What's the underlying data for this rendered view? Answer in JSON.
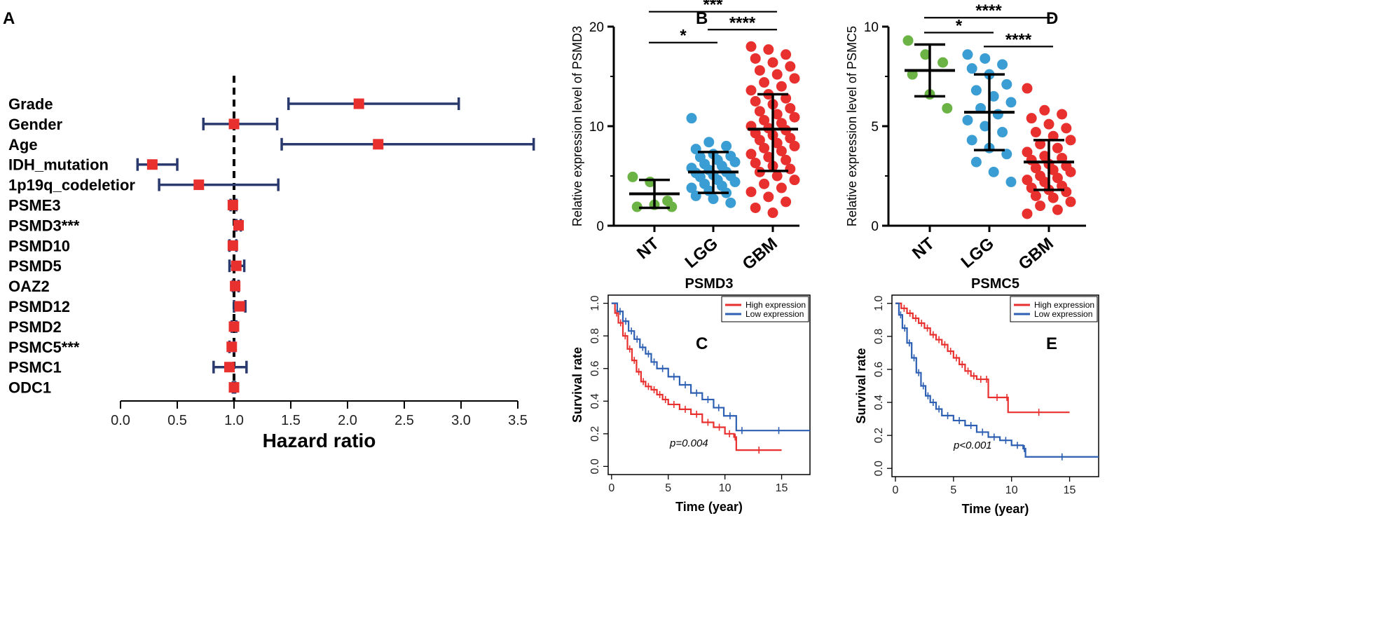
{
  "colors": {
    "red": "#e8302f",
    "blue": "#2d5fb2",
    "green": "#6ab344",
    "cyan": "#3a9dd3",
    "navy": "#2b3a6e",
    "forest_red": "#e8302f",
    "black": "#000000"
  },
  "panel_letters": {
    "A": "A",
    "B": "B",
    "C": "C",
    "D": "D",
    "E": "E"
  },
  "chart_data": [
    {
      "id": "A",
      "type": "forest",
      "xlabel": "Hazard ratio",
      "xlim": [
        0,
        3.5
      ],
      "xticks": [
        "0.0",
        "0.5",
        "1.0",
        "1.5",
        "2.0",
        "2.5",
        "3.0",
        "3.5"
      ],
      "reference_line": 1.0,
      "rows": [
        {
          "label": "Grade",
          "hr": 2.1,
          "lo": 1.48,
          "hi": 2.98
        },
        {
          "label": "Gender",
          "hr": 1.0,
          "lo": 0.73,
          "hi": 1.38
        },
        {
          "label": "Age",
          "hr": 2.27,
          "lo": 1.42,
          "hi": 3.64
        },
        {
          "label": "IDH_mutation",
          "hr": 0.28,
          "lo": 0.15,
          "hi": 0.5
        },
        {
          "label": "1p19q_codeletior",
          "hr": 0.69,
          "lo": 0.34,
          "hi": 1.39
        },
        {
          "label": "PSME3",
          "hr": 0.99,
          "lo": 0.97,
          "hi": 1.02
        },
        {
          "label": "PSMD3***",
          "hr": 1.04,
          "lo": 1.02,
          "hi": 1.06
        },
        {
          "label": "PSMD10",
          "hr": 0.99,
          "lo": 0.96,
          "hi": 1.02
        },
        {
          "label": "PSMD5",
          "hr": 1.02,
          "lo": 0.96,
          "hi": 1.09
        },
        {
          "label": "OAZ2",
          "hr": 1.01,
          "lo": 0.99,
          "hi": 1.04
        },
        {
          "label": "PSMD12",
          "hr": 1.05,
          "lo": 1.0,
          "hi": 1.1
        },
        {
          "label": "PSMD2",
          "hr": 1.0,
          "lo": 0.98,
          "hi": 1.02
        },
        {
          "label": "PSMC5***",
          "hr": 0.98,
          "lo": 0.96,
          "hi": 1.0
        },
        {
          "label": "PSMC1",
          "hr": 0.96,
          "lo": 0.82,
          "hi": 1.11
        },
        {
          "label": "ODC1",
          "hr": 1.0,
          "lo": 0.99,
          "hi": 1.01
        }
      ]
    },
    {
      "id": "B",
      "type": "scatter",
      "ylabel": "Relative expression level of  PSMD3",
      "ylim": [
        0,
        20
      ],
      "yticks": [
        "0",
        "10",
        "20"
      ],
      "categories": [
        "NT",
        "LGG",
        "GBM"
      ],
      "summary": [
        {
          "mean": 3.2,
          "sd_lo": 1.8,
          "sd_hi": 4.6
        },
        {
          "mean": 5.4,
          "sd_lo": 3.3,
          "sd_hi": 7.4
        },
        {
          "mean": 9.7,
          "sd_lo": 5.5,
          "sd_hi": 13.2
        }
      ],
      "points": [
        [
          4.9,
          4.4,
          2.5,
          1.9,
          2.1,
          1.9
        ],
        [
          10.8,
          8.4,
          8.0,
          7.7,
          7.2,
          7.0,
          6.9,
          6.6,
          6.4,
          6.2,
          6.0,
          5.8,
          5.6,
          5.4,
          5.3,
          5.1,
          5.0,
          4.9,
          4.6,
          4.4,
          4.2,
          4.0,
          3.8,
          3.5,
          3.3,
          3.0,
          2.7,
          2.3
        ],
        [
          18.0,
          17.7,
          17.2,
          16.8,
          16.4,
          16.0,
          15.6,
          15.2,
          14.8,
          14.4,
          14.0,
          13.6,
          13.2,
          12.8,
          12.5,
          12.2,
          11.8,
          11.5,
          11.2,
          10.9,
          10.6,
          10.3,
          10.0,
          9.8,
          9.6,
          9.3,
          9.1,
          8.8,
          8.6,
          8.3,
          8.0,
          7.8,
          7.5,
          7.2,
          6.9,
          6.6,
          6.3,
          6.0,
          5.7,
          5.4,
          5.0,
          4.6,
          4.2,
          3.8,
          3.4,
          2.9,
          2.4,
          1.8,
          1.3
        ]
      ],
      "colors": [
        "#6ab344",
        "#3a9dd3",
        "#e8302f"
      ],
      "significance": [
        {
          "label": "***",
          "from": 0,
          "to": 2,
          "level": 21.5
        },
        {
          "label": "*",
          "from": 0,
          "to": 1,
          "level": 18.4
        },
        {
          "label": "****",
          "from": 1,
          "to": 2,
          "level": 19.7
        }
      ]
    },
    {
      "id": "D",
      "type": "scatter",
      "ylabel": "Relative expression level of  PSMC5",
      "ylim": [
        0,
        10
      ],
      "yticks": [
        "0",
        "5",
        "10"
      ],
      "categories": [
        "NT",
        "LGG",
        "GBM"
      ],
      "summary": [
        {
          "mean": 7.8,
          "sd_lo": 6.5,
          "sd_hi": 9.1
        },
        {
          "mean": 5.7,
          "sd_lo": 3.8,
          "sd_hi": 7.6
        },
        {
          "mean": 3.2,
          "sd_lo": 1.8,
          "sd_hi": 4.3
        }
      ],
      "points": [
        [
          9.3,
          8.6,
          8.2,
          7.6,
          6.6,
          5.9
        ],
        [
          8.6,
          8.4,
          8.1,
          7.9,
          7.6,
          7.1,
          6.8,
          6.5,
          6.2,
          5.9,
          5.6,
          5.3,
          5.0,
          4.7,
          4.3,
          3.9,
          3.6,
          3.2,
          2.7,
          2.2
        ],
        [
          6.9,
          5.8,
          5.6,
          5.4,
          5.1,
          4.9,
          4.7,
          4.5,
          4.3,
          4.1,
          3.9,
          3.7,
          3.5,
          3.4,
          3.3,
          3.1,
          3.0,
          2.9,
          2.8,
          2.7,
          2.5,
          2.4,
          2.3,
          2.2,
          2.0,
          1.9,
          1.8,
          1.7,
          1.5,
          1.4,
          1.2,
          1.0,
          0.8,
          0.6
        ]
      ],
      "colors": [
        "#6ab344",
        "#3a9dd3",
        "#e8302f"
      ],
      "significance": [
        {
          "label": "****",
          "from": 0,
          "to": 2,
          "level": 10.45
        },
        {
          "label": "*",
          "from": 0,
          "to": 1,
          "level": 9.7
        },
        {
          "label": "****",
          "from": 1,
          "to": 2,
          "level": 9.0
        }
      ]
    },
    {
      "id": "C",
      "type": "line",
      "title": "PSMD3",
      "xlabel": "Time (year)",
      "ylabel": "Survival rate",
      "xlim": [
        -0.3,
        17.5
      ],
      "ylim": [
        -0.05,
        1.05
      ],
      "xticks": [
        "0",
        "5",
        "10",
        "15"
      ],
      "yticks": [
        "0.0",
        "0.2",
        "0.4",
        "0.6",
        "0.8",
        "1.0"
      ],
      "annotation": "p=0.004",
      "legend": [
        "High expression",
        "Low expression"
      ],
      "series": [
        {
          "name": "High expression",
          "color": "#e8302f",
          "x": [
            0,
            0.3,
            0.6,
            1.0,
            1.4,
            1.8,
            2.2,
            2.6,
            3.0,
            3.5,
            4.0,
            4.5,
            5.0,
            6.0,
            7.0,
            8.0,
            9.0,
            10.0,
            10.8,
            11.0,
            15.0
          ],
          "y": [
            1.0,
            0.94,
            0.88,
            0.8,
            0.72,
            0.65,
            0.58,
            0.52,
            0.49,
            0.47,
            0.44,
            0.41,
            0.38,
            0.35,
            0.32,
            0.27,
            0.24,
            0.2,
            0.18,
            0.1,
            0.1
          ]
        },
        {
          "name": "Low expression",
          "color": "#2d5fb2",
          "x": [
            0,
            0.5,
            1.0,
            1.5,
            2.0,
            2.5,
            3.0,
            3.5,
            4.0,
            5.0,
            6.0,
            7.0,
            8.0,
            9.0,
            9.9,
            11.0,
            12.0,
            17.5
          ],
          "y": [
            1.0,
            0.95,
            0.89,
            0.83,
            0.78,
            0.73,
            0.69,
            0.64,
            0.6,
            0.55,
            0.5,
            0.45,
            0.41,
            0.36,
            0.31,
            0.22,
            0.22,
            0.22
          ]
        }
      ]
    },
    {
      "id": "E",
      "type": "line",
      "title": "PSMC5",
      "xlabel": "Time (year)",
      "ylabel": "Survival rate",
      "xlim": [
        -0.3,
        17.5
      ],
      "ylim": [
        -0.05,
        1.05
      ],
      "xticks": [
        "0",
        "5",
        "10",
        "15"
      ],
      "yticks": [
        "0.0",
        "0.2",
        "0.4",
        "0.6",
        "0.8",
        "1.0"
      ],
      "annotation": "p<0.001",
      "legend": [
        "High expression",
        "Low expression"
      ],
      "series": [
        {
          "name": "High expression",
          "color": "#e8302f",
          "x": [
            0,
            0.5,
            1.0,
            1.5,
            2.0,
            2.5,
            3.0,
            3.5,
            4.0,
            4.5,
            5.0,
            5.5,
            6.0,
            6.5,
            7.0,
            7.7,
            8.0,
            9.5,
            9.7,
            15.0
          ],
          "y": [
            1.0,
            0.97,
            0.94,
            0.91,
            0.88,
            0.85,
            0.81,
            0.78,
            0.75,
            0.71,
            0.67,
            0.63,
            0.59,
            0.56,
            0.54,
            0.54,
            0.43,
            0.43,
            0.34,
            0.34
          ]
        },
        {
          "name": "Low expression",
          "color": "#2d5fb2",
          "x": [
            0,
            0.3,
            0.6,
            1.0,
            1.4,
            1.8,
            2.2,
            2.6,
            3.0,
            3.5,
            4.0,
            5.0,
            6.0,
            7.0,
            8.0,
            9.0,
            10.0,
            11.0,
            11.2,
            17.5
          ],
          "y": [
            1.0,
            0.93,
            0.85,
            0.76,
            0.67,
            0.58,
            0.5,
            0.44,
            0.4,
            0.36,
            0.32,
            0.29,
            0.26,
            0.22,
            0.19,
            0.17,
            0.14,
            0.12,
            0.07,
            0.07
          ]
        }
      ]
    }
  ]
}
